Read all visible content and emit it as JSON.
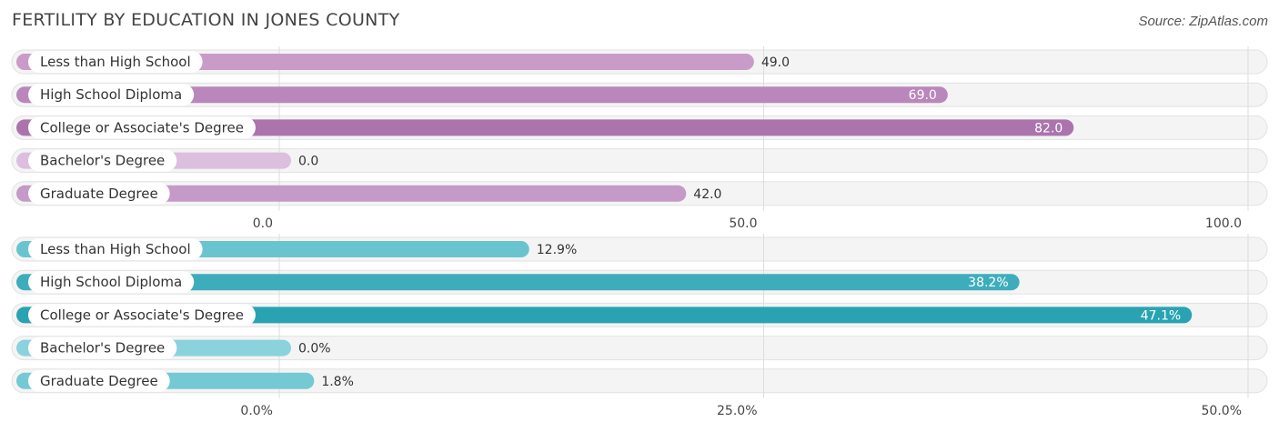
{
  "title": "FERTILITY BY EDUCATION IN JONES COUNTY",
  "source": "Source: ZipAtlas.com",
  "chart_data": [
    {
      "type": "bar",
      "orientation": "horizontal",
      "categories": [
        "Less than High School",
        "High School Diploma",
        "College or Associate's Degree",
        "Bachelor's Degree",
        "Graduate Degree"
      ],
      "values": [
        49.0,
        69.0,
        82.0,
        0.0,
        42.0
      ],
      "value_labels": [
        "49.0",
        "69.0",
        "82.0",
        "0.0",
        "42.0"
      ],
      "xlim": [
        0,
        100
      ],
      "ticks": [
        0,
        50,
        100
      ],
      "tick_labels": [
        "0.0",
        "50.0",
        "100.0"
      ],
      "colors": [
        "#c99bc9",
        "#b987bb",
        "#ab74ad",
        "#dcbede",
        "#c599c8"
      ],
      "grid": true
    },
    {
      "type": "bar",
      "orientation": "horizontal",
      "categories": [
        "Less than High School",
        "High School Diploma",
        "College or Associate's Degree",
        "Bachelor's Degree",
        "Graduate Degree"
      ],
      "values": [
        12.9,
        38.2,
        47.1,
        0.0,
        1.8
      ],
      "value_labels": [
        "12.9%",
        "38.2%",
        "47.1%",
        "0.0%",
        "1.8%"
      ],
      "xlim": [
        0,
        50
      ],
      "ticks": [
        0,
        25,
        50
      ],
      "tick_labels": [
        "0.0%",
        "25.0%",
        "50.0%"
      ],
      "colors": [
        "#6ac4cf",
        "#3eadbb",
        "#29a3b2",
        "#8ad3dc",
        "#74c9d3"
      ],
      "grid": true
    }
  ]
}
